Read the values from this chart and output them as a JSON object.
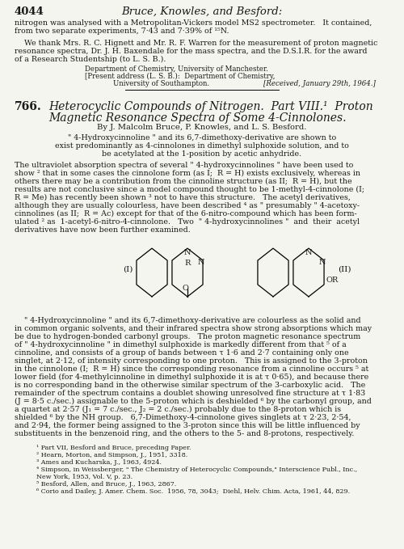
{
  "figsize": [
    5.0,
    6.79
  ],
  "dpi": 100,
  "bg_color": "#f5f5f0",
  "page_bg": "#f0ede8",
  "text_color": "#1a1a1a",
  "title_line1": "766.   Heterocyclic Compounds of Nitrogen.  Part VIII.¹  Proton",
  "title_line2": "Magnetic Resonance Spectra of Some 4-Cinnolones.",
  "authors": "By J. Malcolm Bruce, P. Knowles, and L. S. Besford.",
  "abstract1": "\" 4-Hydroxycinnoline \" and its 6,7-dimethoxy-derivative are shown to",
  "abstract2": "exist predominantly as 4-cinnolones in dimethyl sulphoxide solution, and to",
  "abstract3": "be acetylated at the 1-position by acetic anhydride.",
  "footnote1": "¹ Part VII, Besford and Bruce, preceding Paper.",
  "footnote2": "² Hearn, Morton, and Simpson, J., 1951, 3318.",
  "footnote3": "³ Ames and Kucharska, J., 1963, 4924.",
  "footnote4a": "⁴ Simpson, in Weissberger, \" The Chemistry of Heterocyclic Compounds,\" Interscience Publ., Inc.,",
  "footnote4b": "New York, 1953, Vol. V, p. 23.",
  "footnote5": "⁵ Besford, Allen, and Bruce, J., 1963, 2867.",
  "footnote6": "⁶ Corio and Dailey, J. Amer. Chem. Soc.  1956, 78, 3043;  Diehl, Helv. Chim. Acta, 1961, 44, 829."
}
